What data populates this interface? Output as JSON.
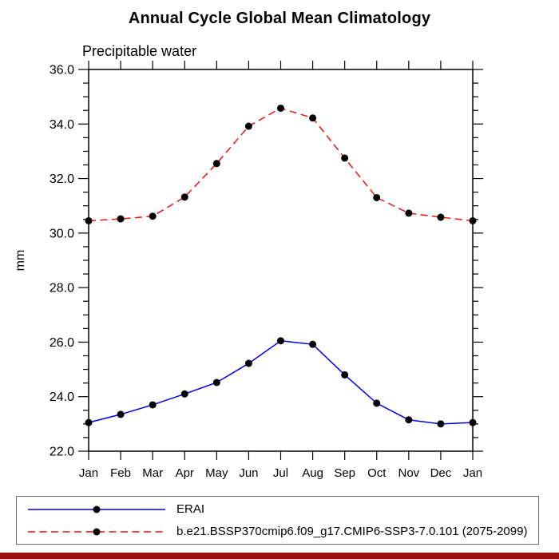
{
  "page": {
    "bottom_bar_color": "#991111",
    "background_color": "#ffffff"
  },
  "chart_data": {
    "type": "line",
    "title": "Annual Cycle Global Mean Climatology",
    "subtitle": "Precipitable water",
    "ylabel": "mm",
    "xlabel": "",
    "x_categories": [
      "Jan",
      "Feb",
      "Mar",
      "Apr",
      "May",
      "Jun",
      "Jul",
      "Aug",
      "Sep",
      "Oct",
      "Nov",
      "Dec",
      "Jan"
    ],
    "ylim": [
      22.0,
      36.0
    ],
    "ytick_major_step": 2.0,
    "ytick_minor_step": 0.5,
    "ytick_labels": [
      "22.0",
      "24.0",
      "26.0",
      "28.0",
      "30.0",
      "32.0",
      "34.0",
      "36.0"
    ],
    "grid": false,
    "legend_position": "bottom-left-box",
    "axis_color": "#000000",
    "marker_color": "#000000",
    "series": [
      {
        "name": "ERAI",
        "color": "#0000ee",
        "line_style": "solid",
        "marker": "circle",
        "values": [
          23.05,
          23.35,
          23.7,
          24.1,
          24.52,
          25.22,
          26.05,
          25.92,
          24.8,
          23.76,
          23.15,
          23.0,
          23.05
        ]
      },
      {
        "name": "b.e21.BSSP370cmip6.f09_g17.CMIP6-SSP3-7.0.101 (2075-2099)",
        "color": "#ee1111",
        "line_style": "dashed",
        "marker": "circle",
        "values": [
          30.45,
          30.52,
          30.62,
          31.32,
          32.55,
          33.92,
          34.58,
          34.22,
          32.75,
          31.3,
          30.73,
          30.58,
          30.45
        ]
      }
    ]
  }
}
